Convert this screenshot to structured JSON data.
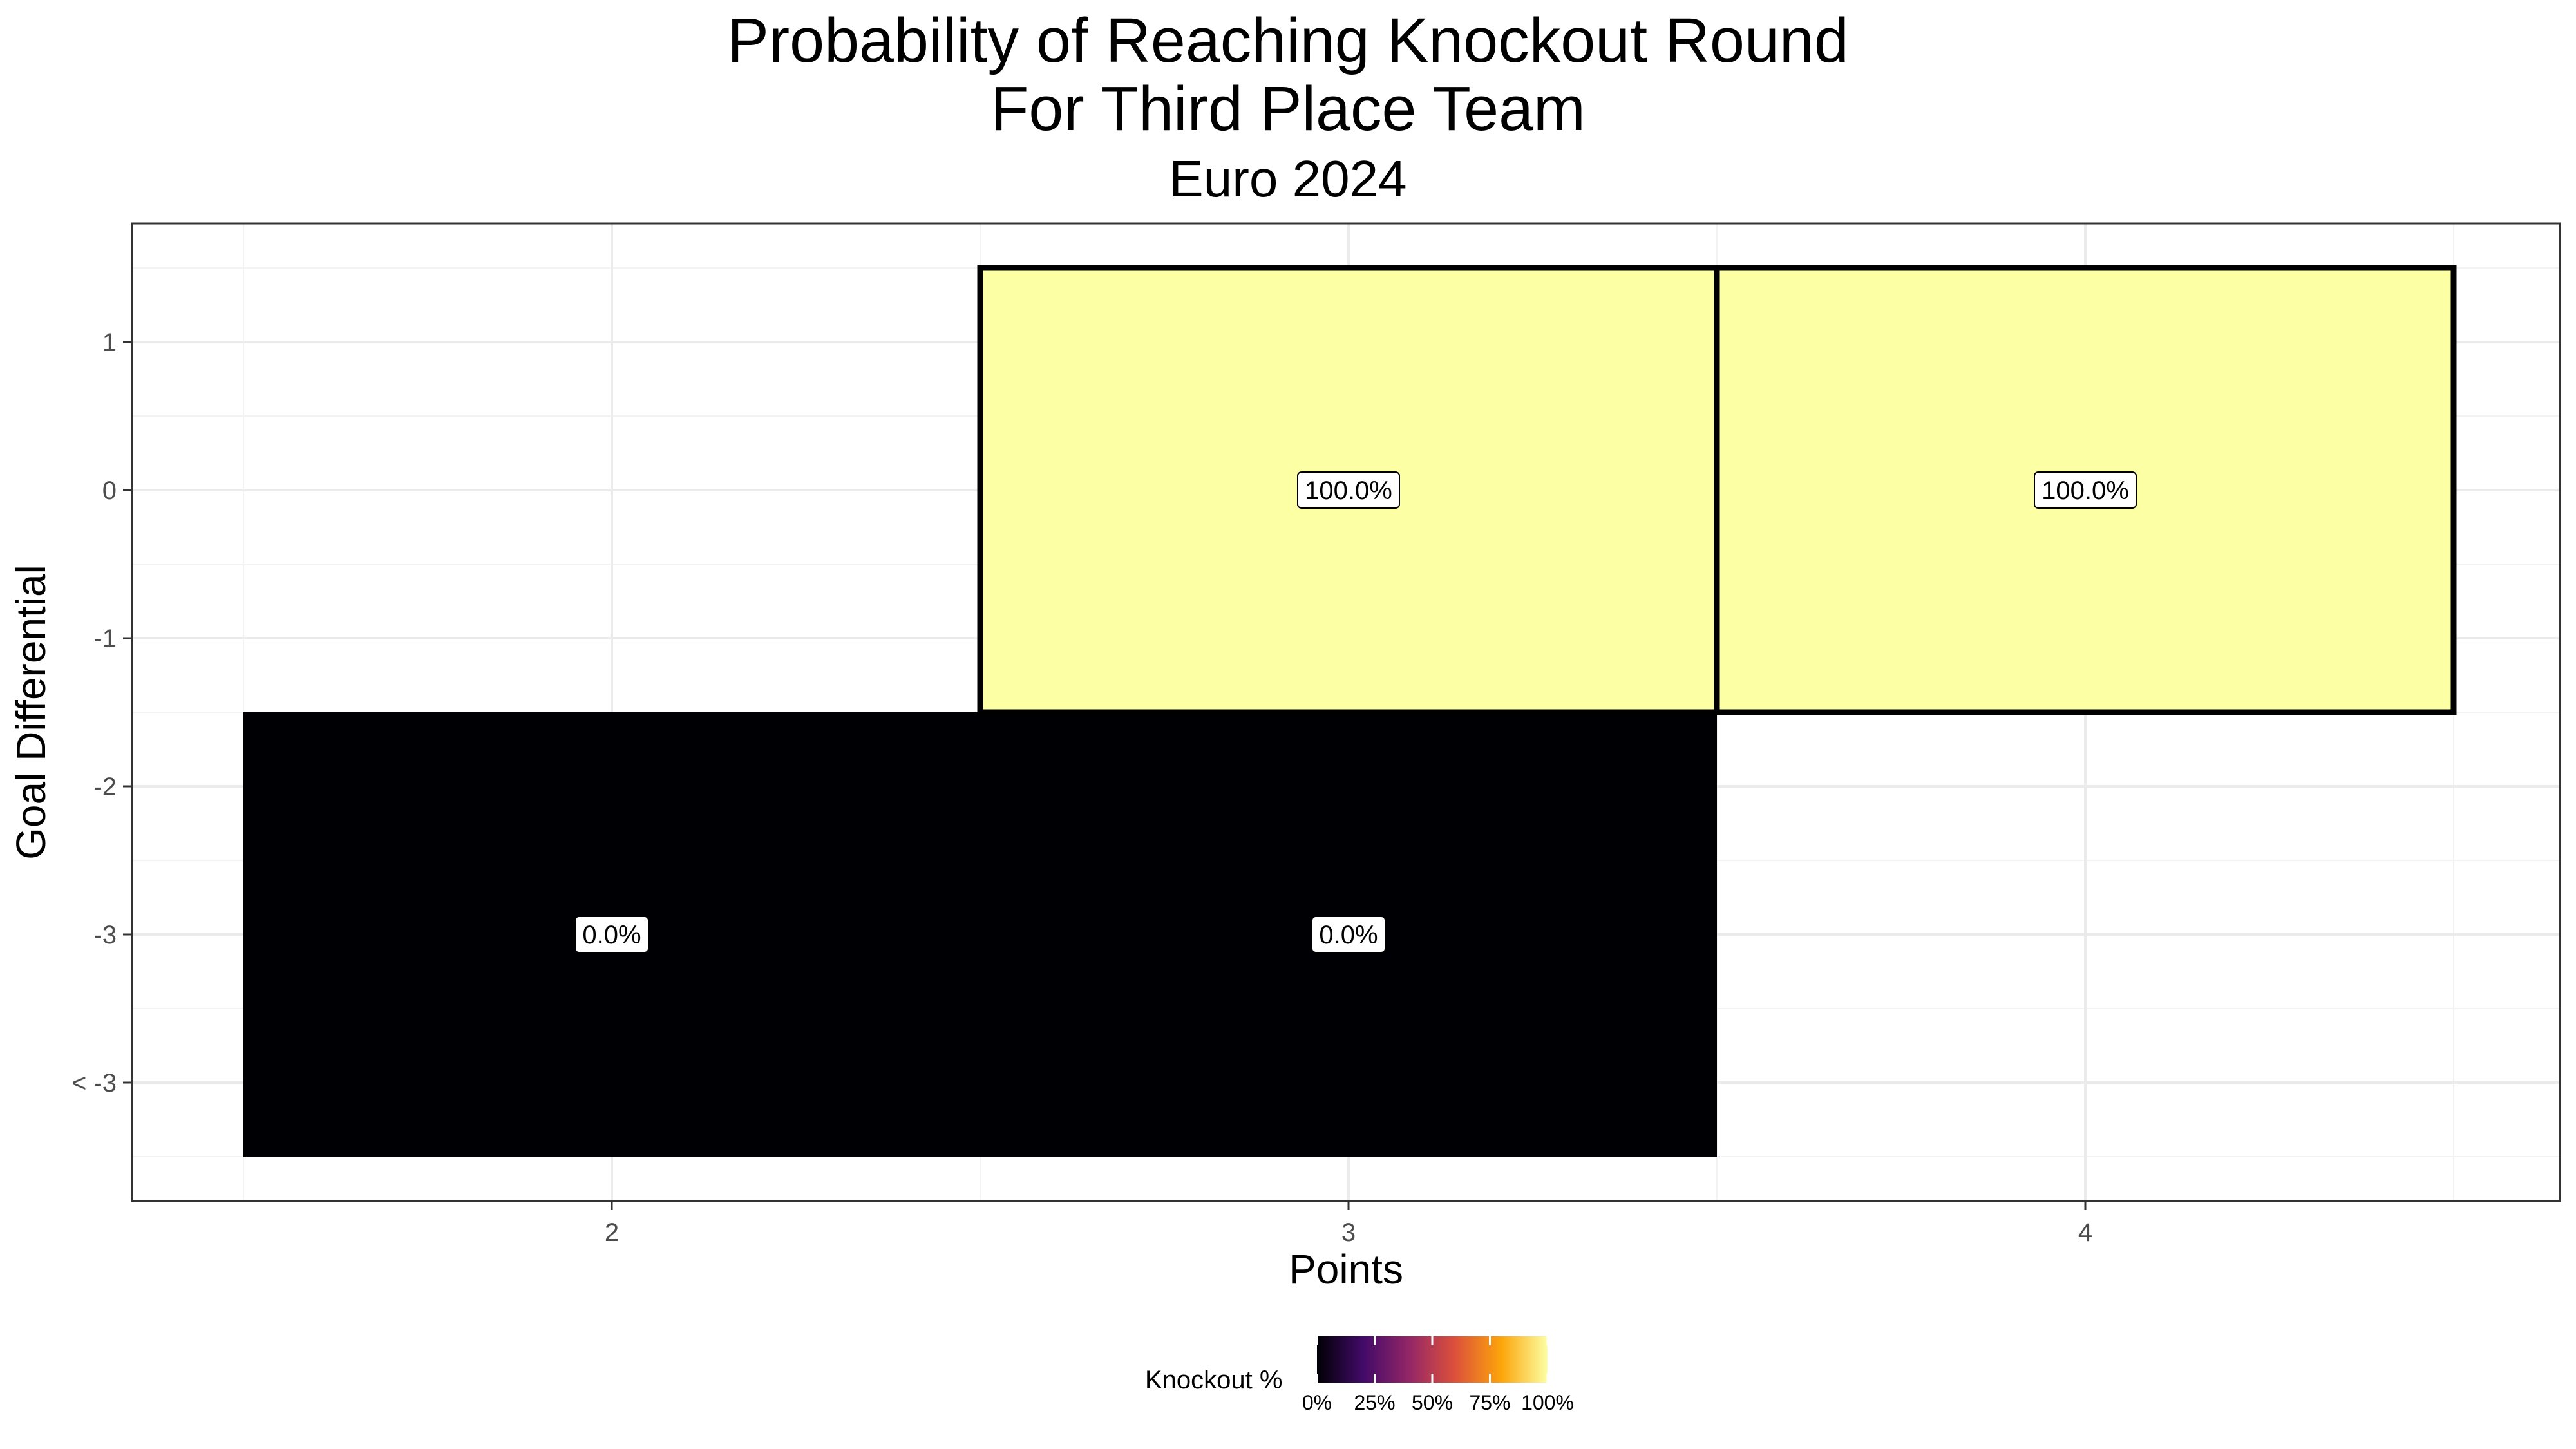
{
  "chart_data": {
    "type": "heatmap",
    "title_line1": "Probability of Reaching Knockout Round",
    "title_line2": "For Third Place Team",
    "subtitle": "Euro 2024",
    "xlabel": "Points",
    "ylabel": "Goal Differential",
    "x_categories": [
      "2",
      "3",
      "4"
    ],
    "y_categories": [
      "< -3",
      "-3",
      "-2",
      "-1",
      "0",
      "1"
    ],
    "cells": [
      {
        "x": "2",
        "y_from": "< -3",
        "y_to": "-2",
        "value": 0.0,
        "label": "0.0%"
      },
      {
        "x": "3",
        "y_from": "< -3",
        "y_to": "-2",
        "value": 0.0,
        "label": "0.0%"
      },
      {
        "x": "3",
        "y_from": "-1",
        "y_to": "1",
        "value": 100.0,
        "label": "100.0%"
      },
      {
        "x": "4",
        "y_from": "-1",
        "y_to": "1",
        "value": 100.0,
        "label": "100.0%"
      }
    ],
    "outlined_cells": [
      "3:-1..1",
      "4:-1..1"
    ],
    "legend": {
      "title": "Knockout %",
      "position": "bottom",
      "ticks": [
        "0%",
        "25%",
        "50%",
        "75%",
        "100%"
      ],
      "palette": [
        "#000004",
        "#420A68",
        "#932667",
        "#DD513A",
        "#FCA50A",
        "#FCFFA4"
      ]
    },
    "grid": true,
    "colors": {
      "high": "#FCFFA4",
      "low": "#000004",
      "outline": "#000000"
    }
  }
}
